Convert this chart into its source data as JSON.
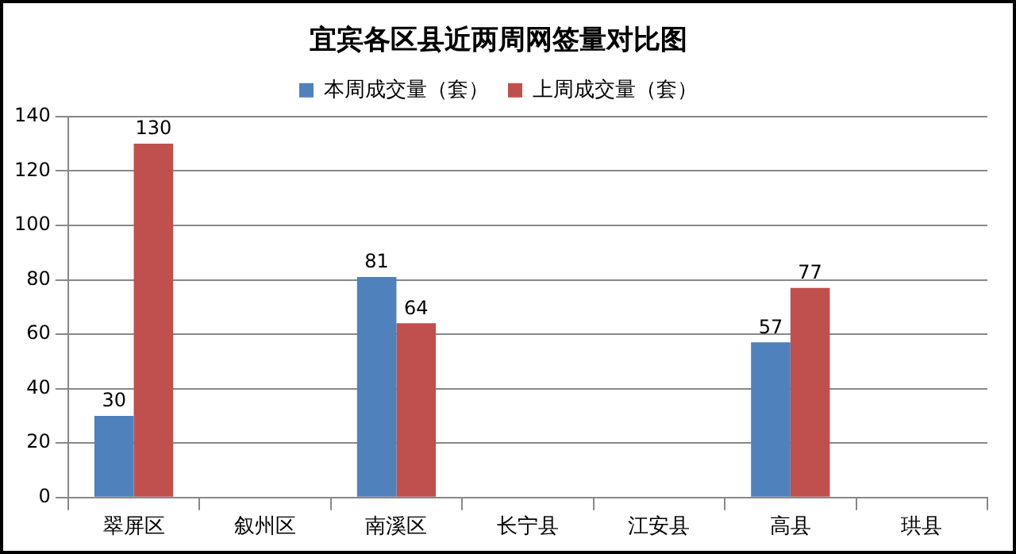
{
  "chart_data": {
    "type": "bar",
    "title": "宜宾各区县近两周网签量对比图",
    "categories": [
      "翠屏区",
      "叙州区",
      "南溪区",
      "长宁县",
      "江安县",
      "高县",
      "珙县"
    ],
    "series": [
      {
        "name": "本周成交量（套）",
        "color": "#4f81bd",
        "values": [
          30,
          null,
          81,
          null,
          null,
          57,
          null
        ]
      },
      {
        "name": "上周成交量（套）",
        "color": "#c0504d",
        "values": [
          130,
          null,
          64,
          null,
          null,
          77,
          null
        ]
      }
    ],
    "ylim": [
      0,
      140
    ],
    "yticks": [
      0,
      20,
      40,
      60,
      80,
      100,
      120,
      140
    ],
    "grid": "y",
    "legend": "top",
    "data_labels": true
  }
}
